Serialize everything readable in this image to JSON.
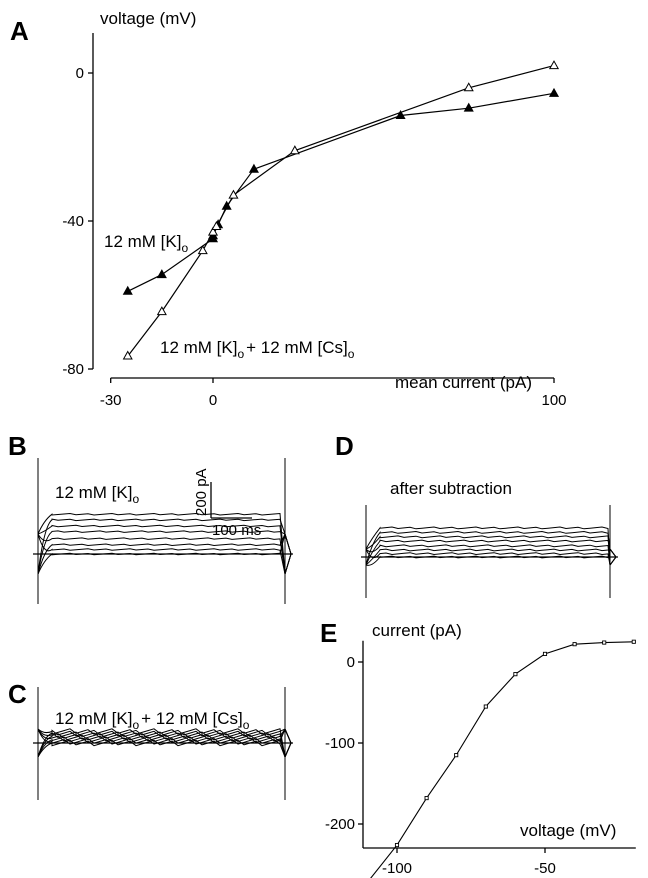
{
  "panels": {
    "a": {
      "letter": "A"
    },
    "b": {
      "letter": "B",
      "label_main": "12 mM [K]",
      "label_sub": "o",
      "scale_y": "200 pA",
      "scale_x": "100 ms"
    },
    "c": {
      "letter": "C",
      "label_main1": "12 mM [K]",
      "label_sub1": "o",
      "label_main2": "+ 12 mM [Cs]",
      "label_sub2": "o"
    },
    "d": {
      "letter": "D",
      "label": "after subtraction"
    },
    "e": {
      "letter": "E"
    }
  },
  "chart_data": [
    {
      "type": "line",
      "panel": "A",
      "ylabel": "voltage (mV)",
      "xlabel": "mean current (pA)",
      "xlim": [
        -30,
        100
      ],
      "ylim": [
        -80,
        10
      ],
      "xticks": [
        -30,
        0,
        100
      ],
      "yticks": [
        0,
        -40,
        -80
      ],
      "series": [
        {
          "name": "12 mM [K]o",
          "marker": "filled-triangle",
          "points": [
            [
              -25,
              -59
            ],
            [
              -15,
              -54.5
            ],
            [
              0,
              -44.8
            ],
            [
              0,
              -44
            ],
            [
              1.5,
              -41
            ],
            [
              4,
              -36
            ],
            [
              12,
              -26
            ],
            [
              55,
              -11.5
            ],
            [
              75,
              -9.5
            ],
            [
              100,
              -5.5
            ]
          ]
        },
        {
          "name": "12 mM [K]o + 12 mM [Cs]o",
          "marker": "open-triangle",
          "points": [
            [
              -25,
              -76.5
            ],
            [
              -15,
              -64.5
            ],
            [
              -3,
              -48
            ],
            [
              0,
              -43
            ],
            [
              1,
              -41.5
            ],
            [
              6,
              -33
            ],
            [
              24,
              -21
            ],
            [
              75,
              -4
            ],
            [
              100,
              2
            ]
          ]
        }
      ],
      "labels": {
        "k_main": "12 mM [K]",
        "k_sub": "o",
        "cs_main1": "12 mM [K]",
        "cs_sub1": "o",
        "cs_main2": "+ 12 mM [Cs]",
        "cs_sub2": "o"
      }
    },
    {
      "type": "line",
      "panel": "E",
      "ylabel": "current (pA)",
      "xlabel": "voltage (mV)",
      "xlim": [
        -110,
        -20
      ],
      "ylim": [
        -280,
        20
      ],
      "xticks": [
        -100,
        -50
      ],
      "yticks": [
        0,
        -100,
        -200
      ],
      "series": [
        {
          "marker": "small-square",
          "points": [
            [
              -110,
              -272
            ],
            [
              -100,
              -226
            ],
            [
              -90,
              -168
            ],
            [
              -80,
              -115
            ],
            [
              -70,
              -55
            ],
            [
              -60,
              -15
            ],
            [
              -50,
              10
            ],
            [
              -40,
              22
            ],
            [
              -30,
              24
            ],
            [
              -20,
              25
            ]
          ]
        }
      ]
    }
  ],
  "traces": {
    "b_levels_pA": [
      0,
      -16,
      -33,
      -55,
      -80,
      -100,
      -122,
      -142
    ],
    "c_levels_pA": [
      0,
      -3,
      -6,
      -9,
      -12,
      -15,
      -18,
      -21
    ],
    "d_levels_pA": [
      0,
      -12,
      -25,
      -40,
      -57,
      -72,
      -88,
      -104
    ]
  }
}
